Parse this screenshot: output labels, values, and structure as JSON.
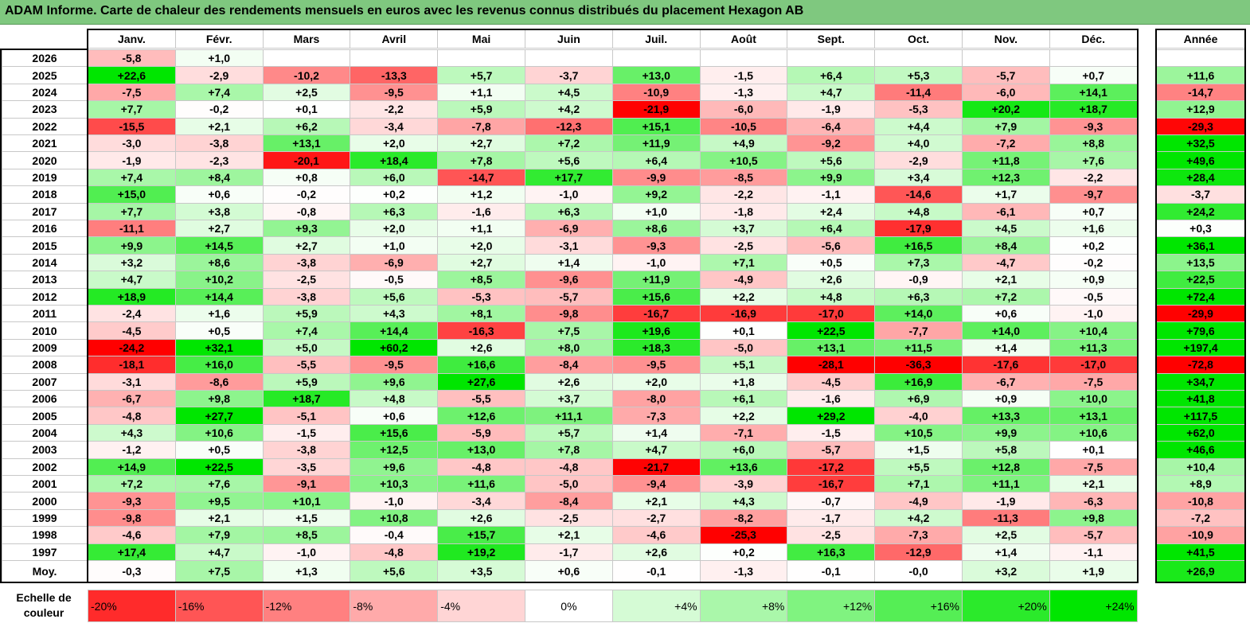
{
  "title": "ADAM Informe. Carte de chaleur des rendements mensuels en euros avec les revenus connus distribués du placement Hexagon AB",
  "year_header": "Année",
  "avg_label": "Moy.",
  "scale_label": "Echelle de couleur",
  "colors": {
    "negative": "#ff0000",
    "neutral": "#ffffff",
    "positive": "#00e600",
    "title_bar": "#7fc87f"
  },
  "chart_data": {
    "type": "heatmap",
    "title": "ADAM Informe. Carte de chaleur des rendements mensuels en euros avec les revenus connus distribués du placement Hexagon AB",
    "columns": [
      "Janv.",
      "Févr.",
      "Mars",
      "Avril",
      "Mai",
      "Juin",
      "Juil.",
      "Août",
      "Sept.",
      "Oct.",
      "Nov.",
      "Déc."
    ],
    "rows": [
      {
        "year": "2026",
        "values": [
          "-5,8",
          "+1,0",
          "",
          "",
          "",
          "",
          "",
          "",
          "",
          "",
          "",
          ""
        ],
        "annual": ""
      },
      {
        "year": "2025",
        "values": [
          "+22,6",
          "-2,9",
          "-10,2",
          "-13,3",
          "+5,7",
          "-3,7",
          "+13,0",
          "-1,5",
          "+6,4",
          "+5,3",
          "-5,7",
          "+0,7"
        ],
        "annual": "+11,6"
      },
      {
        "year": "2024",
        "values": [
          "-7,5",
          "+7,4",
          "+2,5",
          "-9,5",
          "+1,1",
          "+4,5",
          "-10,9",
          "-1,3",
          "+4,7",
          "-11,4",
          "-6,0",
          "+14,1"
        ],
        "annual": "-14,7"
      },
      {
        "year": "2023",
        "values": [
          "+7,7",
          "-0,2",
          "+0,1",
          "-2,2",
          "+5,9",
          "+4,2",
          "-21,9",
          "-6,0",
          "-1,9",
          "-5,3",
          "+20,2",
          "+18,7"
        ],
        "annual": "+12,9"
      },
      {
        "year": "2022",
        "values": [
          "-15,5",
          "+2,1",
          "+6,2",
          "-3,4",
          "-7,8",
          "-12,3",
          "+15,1",
          "-10,5",
          "-6,4",
          "+4,4",
          "+7,9",
          "-9,3"
        ],
        "annual": "-29,3"
      },
      {
        "year": "2021",
        "values": [
          "-3,0",
          "-3,8",
          "+13,1",
          "+2,0",
          "+2,7",
          "+7,2",
          "+11,9",
          "+4,9",
          "-9,2",
          "+4,0",
          "-7,2",
          "+8,8"
        ],
        "annual": "+32,5"
      },
      {
        "year": "2020",
        "values": [
          "-1,9",
          "-2,3",
          "-20,1",
          "+18,4",
          "+7,8",
          "+5,6",
          "+6,4",
          "+10,5",
          "+5,6",
          "-2,9",
          "+11,8",
          "+7,6"
        ],
        "annual": "+49,6"
      },
      {
        "year": "2019",
        "values": [
          "+7,4",
          "+8,4",
          "+0,8",
          "+6,0",
          "-14,7",
          "+17,7",
          "-9,9",
          "-8,5",
          "+9,9",
          "+3,4",
          "+12,3",
          "-2,2"
        ],
        "annual": "+28,4"
      },
      {
        "year": "2018",
        "values": [
          "+15,0",
          "+0,6",
          "-0,2",
          "+0,2",
          "+1,2",
          "-1,0",
          "+9,2",
          "-2,2",
          "-1,1",
          "-14,6",
          "+1,7",
          "-9,7"
        ],
        "annual": "-3,7"
      },
      {
        "year": "2017",
        "values": [
          "+7,7",
          "+3,8",
          "-0,8",
          "+6,3",
          "-1,6",
          "+6,3",
          "+1,0",
          "-1,8",
          "+2,4",
          "+4,8",
          "-6,1",
          "+0,7"
        ],
        "annual": "+24,2"
      },
      {
        "year": "2016",
        "values": [
          "-11,1",
          "+2,7",
          "+9,3",
          "+2,0",
          "+1,1",
          "-6,9",
          "+8,6",
          "+3,7",
          "+6,4",
          "-17,9",
          "+4,5",
          "+1,6"
        ],
        "annual": "+0,3"
      },
      {
        "year": "2015",
        "values": [
          "+9,9",
          "+14,5",
          "+2,7",
          "+1,0",
          "+2,0",
          "-3,1",
          "-9,3",
          "-2,5",
          "-5,6",
          "+16,5",
          "+8,4",
          "+0,2"
        ],
        "annual": "+36,1"
      },
      {
        "year": "2014",
        "values": [
          "+3,2",
          "+8,6",
          "-3,8",
          "-6,9",
          "+2,7",
          "+1,4",
          "-1,0",
          "+7,1",
          "+0,5",
          "+7,3",
          "-4,7",
          "-0,2"
        ],
        "annual": "+13,5"
      },
      {
        "year": "2013",
        "values": [
          "+4,7",
          "+10,2",
          "-2,5",
          "-0,5",
          "+8,5",
          "-9,6",
          "+11,9",
          "-4,9",
          "+2,6",
          "-0,9",
          "+2,1",
          "+0,9"
        ],
        "annual": "+22,5"
      },
      {
        "year": "2012",
        "values": [
          "+18,9",
          "+14,4",
          "-3,8",
          "+5,6",
          "-5,3",
          "-5,7",
          "+15,6",
          "+2,2",
          "+4,8",
          "+6,3",
          "+7,2",
          "-0,5"
        ],
        "annual": "+72,4"
      },
      {
        "year": "2011",
        "values": [
          "-2,4",
          "+1,6",
          "+5,9",
          "+4,3",
          "+8,1",
          "-9,8",
          "-16,7",
          "-16,9",
          "-17,0",
          "+14,0",
          "+0,6",
          "-1,0"
        ],
        "annual": "-29,9"
      },
      {
        "year": "2010",
        "values": [
          "-4,5",
          "+0,5",
          "+7,4",
          "+14,4",
          "-16,3",
          "+7,5",
          "+19,6",
          "+0,1",
          "+22,5",
          "-7,7",
          "+14,0",
          "+10,4"
        ],
        "annual": "+79,6"
      },
      {
        "year": "2009",
        "values": [
          "-24,2",
          "+32,1",
          "+5,0",
          "+60,2",
          "+2,6",
          "+8,0",
          "+18,3",
          "-5,0",
          "+13,1",
          "+11,5",
          "+1,4",
          "+11,3"
        ],
        "annual": "+197,4"
      },
      {
        "year": "2008",
        "values": [
          "-18,1",
          "+16,0",
          "-5,5",
          "-9,5",
          "+16,6",
          "-8,4",
          "-9,5",
          "+5,1",
          "-28,1",
          "-36,3",
          "-17,6",
          "-17,0"
        ],
        "annual": "-72,8"
      },
      {
        "year": "2007",
        "values": [
          "-3,1",
          "-8,6",
          "+5,9",
          "+9,6",
          "+27,6",
          "+2,6",
          "+2,0",
          "+1,8",
          "-4,5",
          "+16,9",
          "-6,7",
          "-7,5"
        ],
        "annual": "+34,7"
      },
      {
        "year": "2006",
        "values": [
          "-6,7",
          "+9,8",
          "+18,7",
          "+4,8",
          "-5,5",
          "+3,7",
          "-8,0",
          "+6,1",
          "-1,6",
          "+6,9",
          "+0,9",
          "+10,0"
        ],
        "annual": "+41,8"
      },
      {
        "year": "2005",
        "values": [
          "-4,8",
          "+27,7",
          "-5,1",
          "+0,6",
          "+12,6",
          "+11,1",
          "-7,3",
          "+2,2",
          "+29,2",
          "-4,0",
          "+13,3",
          "+13,1"
        ],
        "annual": "+117,5"
      },
      {
        "year": "2004",
        "values": [
          "+4,3",
          "+10,6",
          "-1,5",
          "+15,6",
          "-5,9",
          "+5,7",
          "+1,4",
          "-7,1",
          "-1,5",
          "+10,5",
          "+9,9",
          "+10,6"
        ],
        "annual": "+62,0"
      },
      {
        "year": "2003",
        "values": [
          "-1,2",
          "+0,5",
          "-3,8",
          "+12,5",
          "+13,0",
          "+7,8",
          "+4,7",
          "+6,0",
          "-5,7",
          "+1,5",
          "+5,8",
          "+0,1"
        ],
        "annual": "+46,6"
      },
      {
        "year": "2002",
        "values": [
          "+14,9",
          "+22,5",
          "-3,5",
          "+9,6",
          "-4,8",
          "-4,8",
          "-21,7",
          "+13,6",
          "-17,2",
          "+5,5",
          "+12,8",
          "-7,5"
        ],
        "annual": "+10,4"
      },
      {
        "year": "2001",
        "values": [
          "+7,2",
          "+7,6",
          "-9,1",
          "+10,3",
          "+11,6",
          "-5,0",
          "-9,4",
          "-3,9",
          "-16,7",
          "+7,1",
          "+11,1",
          "+2,1"
        ],
        "annual": "+8,9"
      },
      {
        "year": "2000",
        "values": [
          "-9,3",
          "+9,5",
          "+10,1",
          "-1,0",
          "-3,4",
          "-8,4",
          "+2,1",
          "+4,3",
          "-0,7",
          "-4,9",
          "-1,9",
          "-6,3"
        ],
        "annual": "-10,8"
      },
      {
        "year": "1999",
        "values": [
          "-9,8",
          "+2,1",
          "+1,5",
          "+10,8",
          "+2,6",
          "-2,5",
          "-2,7",
          "-8,2",
          "-1,7",
          "+4,2",
          "-11,3",
          "+9,8"
        ],
        "annual": "-7,2"
      },
      {
        "year": "1998",
        "values": [
          "-4,6",
          "+7,9",
          "+8,5",
          "-0,4",
          "+15,7",
          "+2,1",
          "-4,6",
          "-25,3",
          "-2,5",
          "-7,3",
          "+2,5",
          "-5,7"
        ],
        "annual": "-10,9"
      },
      {
        "year": "1997",
        "values": [
          "+17,4",
          "+4,7",
          "-1,0",
          "-4,8",
          "+19,2",
          "-1,7",
          "+2,6",
          "+0,2",
          "+16,3",
          "-12,9",
          "+1,4",
          "-1,1"
        ],
        "annual": "+41,5"
      }
    ],
    "average": {
      "values": [
        "-0,3",
        "+7,5",
        "+1,3",
        "+5,6",
        "+3,5",
        "+0,6",
        "-0,1",
        "-1,3",
        "-0,1",
        "-0,0",
        "+3,2",
        "+1,9"
      ],
      "annual": "+26,9"
    },
    "color_scale": {
      "labels": [
        "-20%",
        "-16%",
        "-12%",
        "-8%",
        "-4%",
        "0%",
        "+4%",
        "+8%",
        "+12%",
        "+16%",
        "+20%",
        "+24%"
      ],
      "values": [
        -20,
        -16,
        -12,
        -8,
        -4,
        0,
        4,
        8,
        12,
        16,
        20,
        24
      ]
    }
  }
}
